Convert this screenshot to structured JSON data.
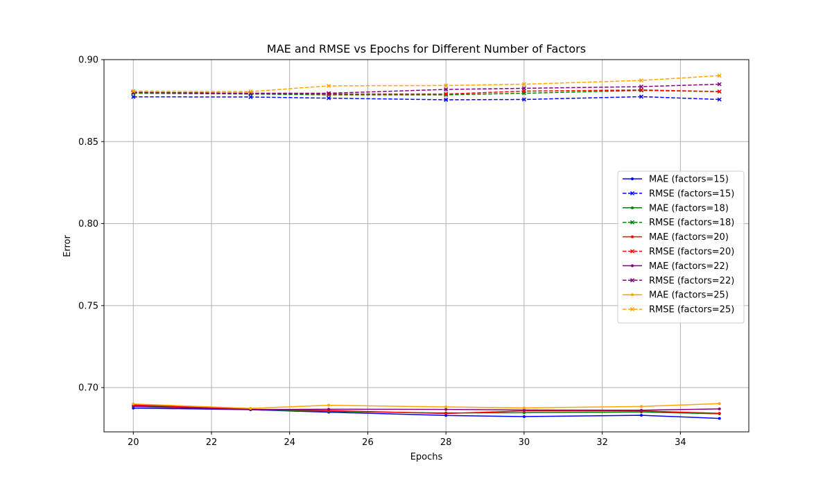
{
  "chart_data": {
    "type": "line",
    "title": "MAE and RMSE vs Epochs for Different Number of Factors",
    "xlabel": "Epochs",
    "ylabel": "Error",
    "xlim": [
      19.25,
      35.75
    ],
    "ylim": [
      0.673,
      0.9
    ],
    "x_ticks": [
      20,
      22,
      24,
      26,
      28,
      30,
      32,
      34
    ],
    "x_tick_labels": [
      "20",
      "22",
      "24",
      "26",
      "28",
      "30",
      "32",
      "34"
    ],
    "y_ticks": [
      0.7,
      0.75,
      0.8,
      0.85,
      0.9
    ],
    "y_tick_labels": [
      "0.70",
      "0.75",
      "0.80",
      "0.85",
      "0.90"
    ],
    "grid": true,
    "legend_position": "center-right",
    "x": [
      20,
      23,
      25,
      28,
      30,
      33,
      35
    ],
    "series": [
      {
        "name": "MAE (factors=15)",
        "metric": "MAE",
        "color": "#0000ff",
        "dash": "solid",
        "marker": "dot",
        "values": [
          0.6875,
          0.6865,
          0.685,
          0.683,
          0.6823,
          0.6831,
          0.6812
        ]
      },
      {
        "name": "RMSE (factors=15)",
        "metric": "RMSE",
        "color": "#0000ff",
        "dash": "dashed",
        "marker": "x",
        "values": [
          0.8773,
          0.8772,
          0.8765,
          0.8755,
          0.8757,
          0.8774,
          0.8757
        ]
      },
      {
        "name": "MAE (factors=18)",
        "metric": "MAE",
        "color": "#008000",
        "dash": "solid",
        "marker": "dot",
        "values": [
          0.689,
          0.6866,
          0.6855,
          0.6845,
          0.6847,
          0.6851,
          0.684
        ]
      },
      {
        "name": "RMSE (factors=18)",
        "metric": "RMSE",
        "color": "#008000",
        "dash": "dashed",
        "marker": "x",
        "values": [
          0.8795,
          0.879,
          0.8785,
          0.8785,
          0.8795,
          0.8812,
          0.8805
        ]
      },
      {
        "name": "MAE (factors=20)",
        "metric": "MAE",
        "color": "#ff0000",
        "dash": "solid",
        "marker": "dot",
        "values": [
          0.6895,
          0.6868,
          0.686,
          0.6842,
          0.6858,
          0.6858,
          0.6843
        ]
      },
      {
        "name": "RMSE (factors=20)",
        "metric": "RMSE",
        "color": "#ff0000",
        "dash": "dashed",
        "marker": "x",
        "values": [
          0.88,
          0.8795,
          0.879,
          0.879,
          0.8808,
          0.8815,
          0.8805
        ]
      },
      {
        "name": "MAE (factors=22)",
        "metric": "MAE",
        "color": "#800080",
        "dash": "solid",
        "marker": "dot",
        "values": [
          0.6885,
          0.6866,
          0.6868,
          0.6867,
          0.6863,
          0.6862,
          0.687
        ]
      },
      {
        "name": "RMSE (factors=22)",
        "metric": "RMSE",
        "color": "#800080",
        "dash": "dashed",
        "marker": "x",
        "values": [
          0.88,
          0.8795,
          0.8795,
          0.8818,
          0.8825,
          0.8835,
          0.885
        ]
      },
      {
        "name": "MAE (factors=25)",
        "metric": "MAE",
        "color": "#ffa500",
        "dash": "solid",
        "marker": "dot",
        "values": [
          0.69,
          0.6873,
          0.6892,
          0.6882,
          0.6876,
          0.6885,
          0.6902
        ]
      },
      {
        "name": "RMSE (factors=25)",
        "metric": "RMSE",
        "color": "#ffa500",
        "dash": "dashed",
        "marker": "x",
        "values": [
          0.8808,
          0.8805,
          0.884,
          0.8842,
          0.885,
          0.8873,
          0.8902
        ]
      }
    ]
  }
}
